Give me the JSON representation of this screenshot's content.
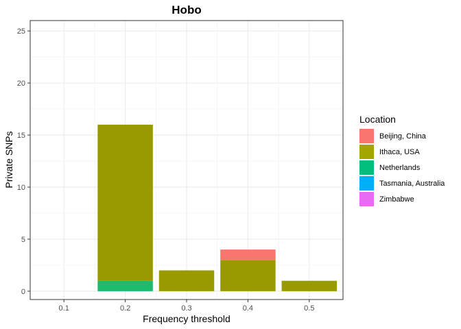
{
  "chart_data": {
    "type": "bar",
    "stacked": true,
    "title": "Hobo",
    "xlabel": "Frequency threshold",
    "ylabel": "Private SNPs",
    "categories": [
      "0.1",
      "0.2",
      "0.3",
      "0.4",
      "0.5"
    ],
    "x_ticks": [
      "0.1",
      "0.2",
      "0.3",
      "0.4",
      "0.5"
    ],
    "y_ticks": [
      "0",
      "5",
      "10",
      "15",
      "20",
      "25"
    ],
    "ylim": [
      -0.8,
      26.0
    ],
    "grid": true,
    "legend": {
      "title": "Location",
      "position": "right"
    },
    "series": [
      {
        "name": "Beijing, China",
        "color": "#F8766D",
        "values": [
          0,
          0,
          0,
          1,
          0
        ]
      },
      {
        "name": "Ithaca, USA",
        "color": "#A3A500",
        "values": [
          0,
          15,
          2,
          3,
          1
        ]
      },
      {
        "name": "Netherlands",
        "color": "#00BF7D",
        "values": [
          0,
          1,
          0,
          0,
          0
        ]
      },
      {
        "name": "Tasmania, Australia",
        "color": "#00B0F6",
        "values": [
          0,
          0,
          0,
          0,
          0
        ]
      },
      {
        "name": "Zimbabwe",
        "color": "#E76BF3",
        "values": [
          0,
          0,
          0,
          0,
          0
        ]
      }
    ],
    "bar_colors": {
      "Beijing, China": "#F8766D",
      "Ithaca, USA": "#999900",
      "Netherlands": "#1CBB6E",
      "Tasmania, Australia": "#1EA5EE",
      "Zimbabwe": "#E44FF0"
    }
  }
}
